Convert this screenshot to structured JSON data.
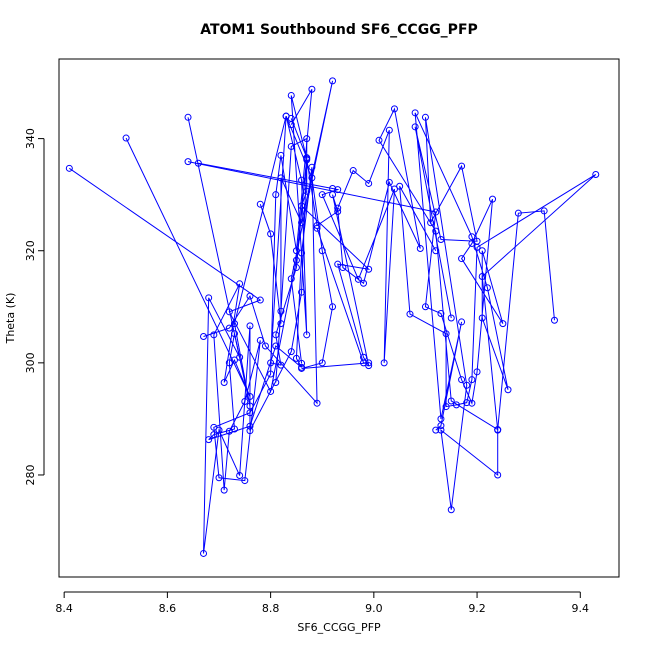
{
  "chart_data": {
    "type": "scatter",
    "title": "ATOM1 Southbound SF6_CCGG_PFP",
    "xlabel": "SF6_CCGG_PFP",
    "ylabel": "Theta (K)",
    "xlim": [
      8.39,
      9.475
    ],
    "ylim": [
      261.8,
      354.2
    ],
    "x_ticks": [
      8.4,
      8.6,
      8.8,
      9.0,
      9.2,
      9.4
    ],
    "x_tick_labels": [
      "8.4",
      "8.6",
      "8.8",
      "9.0",
      "9.2",
      "9.4"
    ],
    "y_ticks": [
      280,
      300,
      320,
      340
    ],
    "y_tick_labels": [
      "280",
      "300",
      "320",
      "340"
    ],
    "marker": "open-circle",
    "connect_points": true,
    "color": "#0000ff",
    "grid": false,
    "series": [
      {
        "segments": [
          [
            [
              8.41,
              334.7
            ],
            [
              8.78,
              311.2
            ],
            [
              8.72,
              309.1
            ],
            [
              8.8,
              294.9
            ],
            [
              8.85,
              318.3
            ],
            [
              8.87,
              336.2
            ],
            [
              8.86,
              312.6
            ],
            [
              8.84,
              302.0
            ],
            [
              8.76,
              287.9
            ],
            [
              8.76,
              306.6
            ],
            [
              8.74,
              279.9
            ],
            [
              8.7,
              288.0
            ],
            [
              8.67,
              266.0
            ],
            [
              8.68,
              311.6
            ],
            [
              8.74,
              301.0
            ],
            [
              8.73,
              305.2
            ],
            [
              8.72,
              300.0
            ],
            [
              8.73,
              288.2
            ],
            [
              8.69,
              287.2
            ],
            [
              8.68,
              286.3
            ],
            [
              8.76,
              288.7
            ],
            [
              8.81,
              303.0
            ],
            [
              8.86,
              299.2
            ],
            [
              8.85,
              300.8
            ],
            [
              8.86,
              319.6
            ],
            [
              8.88,
              334.9
            ],
            [
              8.89,
              292.8
            ],
            [
              8.79,
              303.0
            ],
            [
              8.76,
              311.9
            ],
            [
              8.72,
              306.2
            ],
            [
              8.67,
              304.7
            ]
          ],
          [
            [
              8.52,
              340.1
            ],
            [
              8.76,
              294.0
            ],
            [
              8.73,
              300.5
            ],
            [
              8.71,
              296.5
            ],
            [
              8.74,
              314.1
            ],
            [
              8.69,
              305.0
            ],
            [
              8.71,
              277.3
            ],
            [
              8.72,
              287.8
            ],
            [
              8.75,
              293.1
            ],
            [
              8.78,
              304.0
            ],
            [
              8.75,
              279.0
            ],
            [
              8.7,
              279.5
            ],
            [
              8.69,
              288.5
            ],
            [
              8.76,
              291.1
            ],
            [
              8.8,
              298.0
            ],
            [
              8.81,
              330.0
            ],
            [
              8.82,
              337.0
            ],
            [
              8.85,
              320.0
            ],
            [
              8.88,
              348.8
            ],
            [
              8.84,
              342.5
            ]
          ],
          [
            [
              8.64,
              343.8
            ],
            [
              8.76,
              292.3
            ],
            [
              8.73,
              307.0
            ],
            [
              8.83,
              344.0
            ],
            [
              8.86,
              332.6
            ],
            [
              8.87,
              305.0
            ],
            [
              8.84,
              347.7
            ],
            [
              8.87,
              336.4
            ],
            [
              8.89,
              324.5
            ],
            [
              8.93,
              327.0
            ],
            [
              8.92,
              330.0
            ],
            [
              8.99,
              299.5
            ],
            [
              8.98,
              301.0
            ],
            [
              8.93,
              317.6
            ],
            [
              8.99,
              316.7
            ],
            [
              8.86,
              328.0
            ],
            [
              8.87,
              330.6
            ],
            [
              8.87,
              340.0
            ],
            [
              8.84,
              338.6
            ],
            [
              8.82,
              309.2
            ],
            [
              8.81,
              296.5
            ]
          ],
          [
            [
              8.64,
              335.9
            ],
            [
              9.12,
              326.9
            ],
            [
              9.1,
              310.0
            ],
            [
              9.13,
              308.8
            ],
            [
              9.17,
              297.0
            ],
            [
              9.19,
              292.8
            ],
            [
              9.2,
              298.4
            ],
            [
              9.23,
              329.2
            ],
            [
              9.19,
              321.3
            ],
            [
              9.17,
              318.6
            ],
            [
              9.25,
              307.0
            ],
            [
              9.21,
              320.0
            ],
            [
              9.21,
              308.0
            ],
            [
              9.26,
              295.2
            ],
            [
              9.22,
              313.4
            ],
            [
              9.19,
              322.5
            ],
            [
              9.08,
              344.6
            ],
            [
              9.13,
              290.0
            ],
            [
              9.17,
              307.3
            ],
            [
              9.13,
              288.8
            ],
            [
              9.12,
              288.0
            ]
          ],
          [
            [
              8.66,
              335.6
            ],
            [
              8.92,
              331.1
            ],
            [
              8.93,
              330.9
            ],
            [
              8.9,
              330.0
            ],
            [
              8.97,
              314.9
            ],
            [
              9.04,
              331.0
            ],
            [
              9.02,
              300.0
            ],
            [
              9.03,
              341.5
            ],
            [
              8.99,
              332.0
            ],
            [
              8.96,
              334.3
            ],
            [
              8.93,
              327.6
            ],
            [
              8.94,
              317.0
            ],
            [
              8.98,
              314.2
            ],
            [
              9.03,
              332.2
            ],
            [
              9.09,
              320.4
            ],
            [
              9.04,
              345.3
            ],
            [
              9.01,
              339.7
            ],
            [
              9.12,
              323.5
            ],
            [
              9.15,
              293.2
            ],
            [
              9.24,
              288.1
            ],
            [
              9.28,
              326.7
            ],
            [
              9.33,
              327.1
            ],
            [
              9.35,
              307.6
            ]
          ],
          [
            [
              8.78,
              328.3
            ],
            [
              8.8,
              323.0
            ],
            [
              8.82,
              307.0
            ],
            [
              8.82,
              333.0
            ],
            [
              8.86,
              325.0
            ],
            [
              8.92,
              350.3
            ],
            [
              8.84,
              315.0
            ],
            [
              8.86,
              299.9
            ]
          ],
          [
            [
              9.12,
              320.0
            ],
            [
              9.05,
              331.5
            ],
            [
              9.07,
              308.7
            ],
            [
              9.14,
              305.2
            ],
            [
              9.14,
              292.2
            ],
            [
              9.16,
              292.5
            ],
            [
              9.18,
              292.9
            ],
            [
              9.19,
              297.0
            ],
            [
              9.2,
              320.6
            ],
            [
              9.43,
              333.6
            ],
            [
              9.21,
              315.4
            ],
            [
              9.24,
              288.0
            ],
            [
              9.24,
              280.0
            ],
            [
              9.13,
              288.0
            ],
            [
              9.15,
              273.8
            ],
            [
              9.18,
              296.0
            ],
            [
              9.1,
              343.8
            ],
            [
              9.11,
              325.0
            ],
            [
              9.17,
              335.1
            ],
            [
              9.2,
              321.7
            ],
            [
              9.13,
              322.0
            ],
            [
              9.08,
              342.1
            ],
            [
              9.15,
              308.0
            ]
          ],
          [
            [
              8.89,
              324.0
            ],
            [
              8.98,
              300.0
            ],
            [
              8.99,
              300.0
            ],
            [
              8.86,
              299.0
            ],
            [
              8.9,
              300.0
            ],
            [
              8.92,
              310.0
            ],
            [
              8.9,
              320.0
            ],
            [
              8.88,
              333.0
            ],
            [
              8.83,
              344.0
            ],
            [
              8.8,
              300.0
            ],
            [
              8.82,
              299.6
            ],
            [
              8.81,
              305.0
            ],
            [
              8.85,
              317.0
            ],
            [
              8.87,
              336.6
            ],
            [
              8.84,
              343.6
            ]
          ]
        ]
      }
    ]
  }
}
